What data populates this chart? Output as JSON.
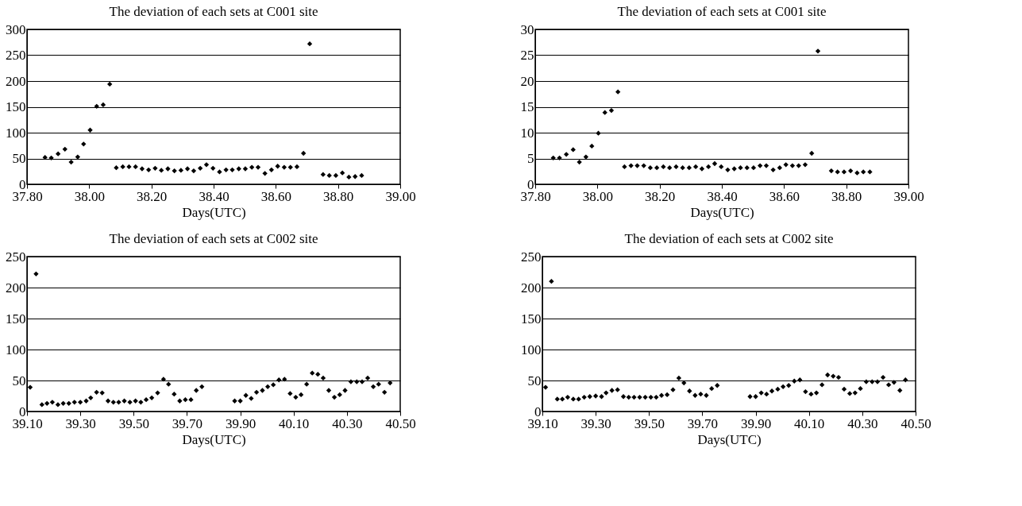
{
  "chart_data": [
    {
      "type": "scatter",
      "title": "The deviation of each sets at C001 site",
      "xlabel": "Days(UTC)",
      "xlim": [
        37.8,
        39.0
      ],
      "xticks": [
        {
          "value": 37.8,
          "label": "37.80"
        },
        {
          "value": 38.0,
          "label": "38.00"
        },
        {
          "value": 38.2,
          "label": "38.20"
        },
        {
          "value": 38.4,
          "label": "38.40"
        },
        {
          "value": 38.6,
          "label": "38.60"
        },
        {
          "value": 38.8,
          "label": "38.80"
        },
        {
          "value": 39.0,
          "label": "39.00"
        }
      ],
      "ylim": [
        0,
        300
      ],
      "yticks": [
        0,
        50,
        100,
        150,
        200,
        250,
        300
      ],
      "grid": "y",
      "marker": "diamond",
      "series": [
        {
          "color": "#000000",
          "x": [
            37.858,
            37.878,
            37.9,
            37.922,
            37.942,
            37.963,
            37.982,
            38.003,
            38.024,
            38.045,
            38.066,
            38.087,
            38.108,
            38.128,
            38.149,
            38.17,
            38.191,
            38.212,
            38.232,
            38.253,
            38.274,
            38.295,
            38.316,
            38.336,
            38.357,
            38.377,
            38.398,
            38.419,
            38.44,
            38.46,
            38.481,
            38.502,
            38.523,
            38.543,
            38.565,
            38.586,
            38.606,
            38.627,
            38.647,
            38.668,
            38.689,
            38.709,
            38.752,
            38.772,
            38.793,
            38.814,
            38.835,
            38.855,
            38.876
          ],
          "values": [
            52,
            51,
            59,
            68,
            43,
            53,
            78,
            105,
            151,
            154,
            194,
            32,
            34,
            34,
            34,
            30,
            28,
            31,
            27,
            30,
            26,
            27,
            30,
            26,
            31,
            38,
            31,
            24,
            28,
            28,
            30,
            30,
            33,
            33,
            21,
            28,
            35,
            33,
            33,
            34,
            60,
            272,
            19,
            17,
            17,
            22,
            14,
            15,
            17
          ]
        }
      ]
    },
    {
      "type": "scatter",
      "title": "The deviation of each sets at C001 site",
      "xlabel": "Days(UTC)",
      "xlim": [
        37.8,
        39.0
      ],
      "xticks": [
        {
          "value": 37.8,
          "label": "37.80"
        },
        {
          "value": 38.0,
          "label": "38.00"
        },
        {
          "value": 38.2,
          "label": "38.20"
        },
        {
          "value": 38.4,
          "label": "38.40"
        },
        {
          "value": 38.6,
          "label": "38.60"
        },
        {
          "value": 38.8,
          "label": "38.80"
        },
        {
          "value": 39.0,
          "label": "39.00"
        }
      ],
      "ylim": [
        0,
        30
      ],
      "yticks": [
        0,
        5,
        10,
        15,
        20,
        25,
        30
      ],
      "grid": "y",
      "marker": "diamond",
      "series": [
        {
          "color": "#000000",
          "x": [
            37.858,
            37.878,
            37.9,
            37.922,
            37.942,
            37.963,
            37.982,
            38.003,
            38.024,
            38.045,
            38.066,
            38.087,
            38.108,
            38.128,
            38.149,
            38.17,
            38.191,
            38.212,
            38.232,
            38.253,
            38.274,
            38.295,
            38.316,
            38.336,
            38.357,
            38.377,
            38.398,
            38.419,
            38.44,
            38.46,
            38.481,
            38.502,
            38.523,
            38.543,
            38.565,
            38.586,
            38.606,
            38.627,
            38.647,
            38.668,
            38.689,
            38.709,
            38.752,
            38.772,
            38.793,
            38.814,
            38.835,
            38.855,
            38.876
          ],
          "values": [
            5.1,
            5.1,
            5.8,
            6.7,
            4.3,
            5.3,
            7.4,
            9.9,
            13.9,
            14.3,
            17.9,
            3.4,
            3.6,
            3.6,
            3.6,
            3.2,
            3.2,
            3.4,
            3.2,
            3.4,
            3.2,
            3.2,
            3.4,
            3.0,
            3.4,
            4.0,
            3.4,
            2.8,
            3.0,
            3.2,
            3.2,
            3.2,
            3.6,
            3.6,
            2.8,
            3.2,
            3.8,
            3.6,
            3.6,
            3.8,
            6.0,
            25.8,
            2.6,
            2.4,
            2.4,
            2.6,
            2.2,
            2.4,
            2.4
          ]
        }
      ]
    },
    {
      "type": "scatter",
      "title": "The deviation of each sets at C002 site",
      "xlabel": "Days(UTC)",
      "xlim": [
        39.1,
        40.5
      ],
      "xticks": [
        {
          "value": 39.1,
          "label": "39.10"
        },
        {
          "value": 39.3,
          "label": "39.30"
        },
        {
          "value": 39.5,
          "label": "39.50"
        },
        {
          "value": 39.7,
          "label": "39.70"
        },
        {
          "value": 39.9,
          "label": "39.90"
        },
        {
          "value": 40.1,
          "label": "40.10"
        },
        {
          "value": 40.3,
          "label": "40.30"
        },
        {
          "value": 40.5,
          "label": "40.50"
        }
      ],
      "ylim": [
        0,
        250
      ],
      "yticks": [
        0,
        50,
        100,
        150,
        200,
        250
      ],
      "grid": "y",
      "marker": "diamond",
      "series": [
        {
          "color": "#000000",
          "x": [
            39.112,
            39.134,
            39.156,
            39.175,
            39.195,
            39.216,
            39.236,
            39.257,
            39.278,
            39.3,
            39.322,
            39.339,
            39.361,
            39.382,
            39.404,
            39.424,
            39.444,
            39.465,
            39.486,
            39.507,
            39.527,
            39.547,
            39.568,
            39.59,
            39.612,
            39.631,
            39.652,
            39.673,
            39.694,
            39.715,
            39.735,
            39.756,
            39.879,
            39.9,
            39.921,
            39.941,
            39.961,
            39.983,
            40.003,
            40.024,
            40.045,
            40.066,
            40.087,
            40.108,
            40.128,
            40.149,
            40.17,
            40.191,
            40.211,
            40.232,
            40.253,
            40.273,
            40.293,
            40.315,
            40.337,
            40.357,
            40.378,
            40.399,
            40.419,
            40.441,
            40.462
          ],
          "values": [
            39,
            222,
            11,
            13,
            15,
            11,
            13,
            13,
            15,
            15,
            17,
            22,
            31,
            30,
            17,
            15,
            15,
            17,
            15,
            17,
            15,
            19,
            22,
            30,
            52,
            44,
            28,
            17,
            19,
            19,
            34,
            40,
            17,
            17,
            26,
            21,
            31,
            34,
            40,
            43,
            51,
            52,
            29,
            23,
            27,
            44,
            62,
            60,
            54,
            34,
            23,
            27,
            34,
            48,
            48,
            48,
            54,
            40,
            44,
            31,
            46
          ]
        }
      ]
    },
    {
      "type": "scatter",
      "title": "The deviation of each sets at C002 site",
      "xlabel": "Days(UTC)",
      "xlim": [
        39.1,
        40.5
      ],
      "xticks": [
        {
          "value": 39.1,
          "label": "39.10"
        },
        {
          "value": 39.3,
          "label": "39.30"
        },
        {
          "value": 39.5,
          "label": "39.50"
        },
        {
          "value": 39.7,
          "label": "39.70"
        },
        {
          "value": 39.9,
          "label": "39.90"
        },
        {
          "value": 40.1,
          "label": "40.10"
        },
        {
          "value": 40.3,
          "label": "40.30"
        },
        {
          "value": 40.5,
          "label": "40.50"
        }
      ],
      "ylim": [
        0,
        250
      ],
      "yticks": [
        0,
        50,
        100,
        150,
        200,
        250
      ],
      "grid": "y",
      "marker": "diamond",
      "series": [
        {
          "color": "#000000",
          "x": [
            39.112,
            39.134,
            39.156,
            39.175,
            39.195,
            39.216,
            39.236,
            39.257,
            39.278,
            39.3,
            39.322,
            39.339,
            39.361,
            39.382,
            39.404,
            39.424,
            39.444,
            39.465,
            39.486,
            39.507,
            39.527,
            39.547,
            39.568,
            39.59,
            39.612,
            39.631,
            39.652,
            39.673,
            39.694,
            39.715,
            39.735,
            39.756,
            39.879,
            39.9,
            39.921,
            39.941,
            39.961,
            39.983,
            40.003,
            40.024,
            40.045,
            40.066,
            40.087,
            40.108,
            40.128,
            40.149,
            40.17,
            40.191,
            40.211,
            40.232,
            40.253,
            40.273,
            40.293,
            40.315,
            40.337,
            40.357,
            40.378,
            40.399,
            40.419,
            40.441,
            40.462
          ],
          "values": [
            39,
            210,
            20,
            20,
            23,
            20,
            20,
            23,
            24,
            25,
            24,
            30,
            34,
            35,
            24,
            23,
            23,
            23,
            23,
            23,
            23,
            26,
            27,
            35,
            54,
            46,
            33,
            26,
            28,
            26,
            37,
            42,
            24,
            24,
            30,
            28,
            33,
            36,
            40,
            42,
            49,
            51,
            32,
            28,
            30,
            43,
            59,
            57,
            55,
            36,
            29,
            30,
            37,
            48,
            48,
            48,
            55,
            43,
            47,
            34,
            51
          ]
        }
      ]
    }
  ]
}
